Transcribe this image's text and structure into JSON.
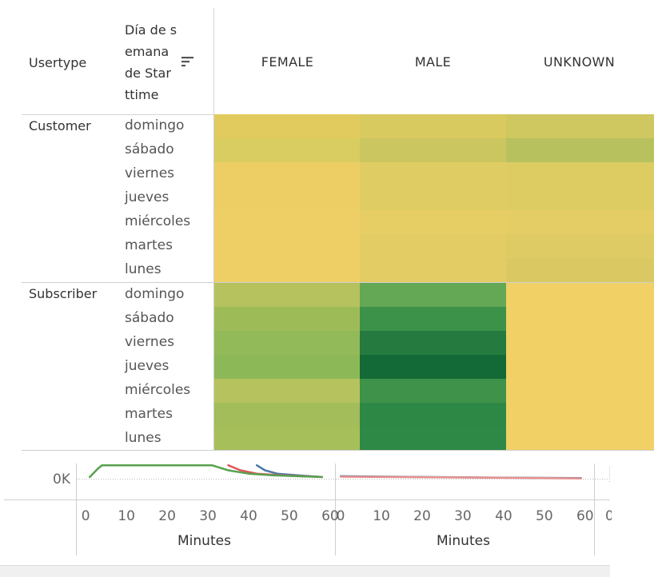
{
  "header": {
    "usertype_label": "Usertype",
    "day_label_lines": [
      "Día de s",
      "emana",
      "de Star",
      "ttime"
    ],
    "sort_icon": "sort-descending-icon"
  },
  "chart_data": [
    {
      "type": "heatmap",
      "columns": [
        "FEMALE",
        "MALE",
        "UNKNOWN"
      ],
      "groups": [
        {
          "name": "Customer",
          "rows": [
            "domingo",
            "sábado",
            "viernes",
            "jueves",
            "miércoles",
            "martes",
            "lunes"
          ],
          "colors": [
            [
              "#e2cb5e",
              "#d9ca60",
              "#cfc760"
            ],
            [
              "#d9cc60",
              "#cbc660",
              "#b7c15e"
            ],
            [
              "#ecce64",
              "#dfcc62",
              "#dccc62"
            ],
            [
              "#ecce64",
              "#dfcc62",
              "#dccc62"
            ],
            [
              "#eecf66",
              "#e6cd64",
              "#e4cd64"
            ],
            [
              "#eecf66",
              "#e2cc63",
              "#dfcb63"
            ],
            [
              "#eecf66",
              "#e2cc63",
              "#dac962"
            ]
          ]
        },
        {
          "name": "Subscriber",
          "rows": [
            "domingo",
            "sábado",
            "viernes",
            "jueves",
            "miércoles",
            "martes",
            "lunes"
          ],
          "colors": [
            [
              "#b6c25e",
              "#64a755",
              "#f1d066"
            ],
            [
              "#9dbc58",
              "#3d9249",
              "#f1d066"
            ],
            [
              "#93ba58",
              "#247a3f",
              "#f1d066"
            ],
            [
              "#8db857",
              "#136a36",
              "#f1d066"
            ],
            [
              "#b6c25e",
              "#3f924a",
              "#f1d066"
            ],
            [
              "#a2bd59",
              "#2e8845",
              "#f1d066"
            ],
            [
              "#a7bf5a",
              "#2f8946",
              "#f1d066"
            ]
          ]
        }
      ]
    },
    {
      "type": "line",
      "y_tick_labels": [
        "0K"
      ],
      "panels": [
        {
          "xlabel": "Minutes",
          "x_ticks": [
            0,
            10,
            20,
            30,
            40,
            50,
            60
          ],
          "xlim": [
            -2,
            61
          ],
          "series": [
            {
              "color": "#4e79a7",
              "points": [
                [
                  42,
                  8
                ],
                [
                  44,
                  5
                ],
                [
                  47,
                  3
                ],
                [
                  52,
                  2
                ],
                [
                  58,
                  1
                ]
              ]
            },
            {
              "color": "#e15759",
              "points": [
                [
                  35,
                  8
                ],
                [
                  38,
                  5
                ],
                [
                  42,
                  3
                ],
                [
                  48,
                  2
                ],
                [
                  58,
                  1
                ]
              ]
            },
            {
              "color": "#59a14f",
              "points": [
                [
                  1,
                  1
                ],
                [
                  3,
                  6
                ],
                [
                  4,
                  8
                ],
                [
                  31,
                  8
                ],
                [
                  35,
                  5
                ],
                [
                  40,
                  3
                ],
                [
                  46,
                  2
                ],
                [
                  58,
                  1
                ]
              ]
            }
          ]
        },
        {
          "xlabel": "Minutes",
          "x_ticks": [
            0,
            10,
            20,
            30,
            40,
            50,
            60
          ],
          "xlim": [
            -1,
            62
          ],
          "series": [
            {
              "color": "#4e79a7",
              "points": [
                [
                  0,
                  1.5
                ],
                [
                  20,
                  1.0
                ],
                [
                  40,
                  0.6
                ],
                [
                  59,
                  0.4
                ]
              ]
            },
            {
              "color": "#e8918e",
              "points": [
                [
                  0,
                  1.2
                ],
                [
                  20,
                  0.9
                ],
                [
                  40,
                  0.5
                ],
                [
                  59,
                  0.2
                ]
              ]
            }
          ]
        }
      ],
      "clipped_tick": "0"
    }
  ]
}
